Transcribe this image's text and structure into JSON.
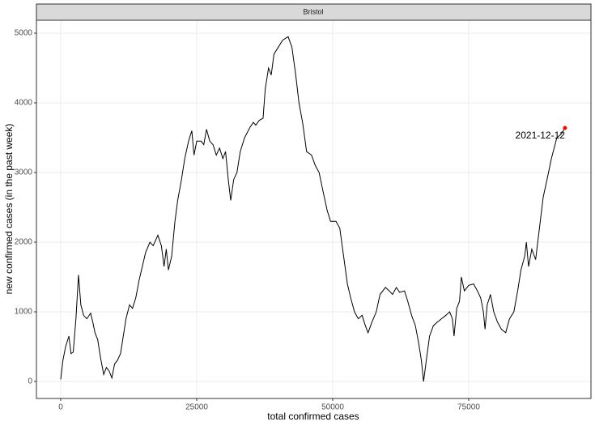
{
  "chart_data": {
    "type": "line",
    "strip": "Bristol",
    "x_label": "total confirmed cases",
    "y_label": "new confirmed cases (in the past week)",
    "color": "#000000",
    "grid": true,
    "xlim": [
      -4464,
      97470
    ],
    "ylim": [
      -244,
      5186
    ],
    "xticks": [
      0,
      25000,
      50000,
      75000
    ],
    "yticks": [
      0,
      1000,
      2000,
      3000,
      4000,
      5000
    ],
    "x": [
      0,
      400,
      900,
      1500,
      1900,
      2300,
      2800,
      3270,
      3700,
      4200,
      4800,
      5500,
      5900,
      6300,
      6800,
      7300,
      7900,
      8400,
      8900,
      9400,
      9900,
      10400,
      11000,
      11500,
      12000,
      12650,
      13200,
      13800,
      14400,
      15000,
      15600,
      16400,
      17000,
      17860,
      18500,
      19000,
      19400,
      19800,
      20400,
      21000,
      21500,
      22200,
      22800,
      23500,
      24100,
      24500,
      25000,
      25800,
      26300,
      26800,
      27400,
      28000,
      28600,
      29200,
      29800,
      30300,
      30800,
      31250,
      31800,
      32400,
      33000,
      33800,
      34800,
      35400,
      35860,
      36500,
      37200,
      37600,
      38200,
      38700,
      39200,
      40000,
      40800,
      41800,
      42500,
      43200,
      43800,
      44500,
      45200,
      46100,
      46800,
      47500,
      48300,
      49000,
      49600,
      50600,
      51300,
      52000,
      52700,
      53300,
      54000,
      54700,
      55400,
      56000,
      56500,
      57200,
      58000,
      58700,
      59700,
      60400,
      61000,
      61700,
      62300,
      63200,
      63800,
      64500,
      65200,
      65800,
      66300,
      66700,
      67200,
      67800,
      68500,
      69200,
      70000,
      70800,
      71500,
      72000,
      72300,
      72800,
      73300,
      73650,
      74200,
      75000,
      75900,
      76600,
      77200,
      77700,
      78000,
      78400,
      79000,
      79600,
      80300,
      81000,
      81800,
      82500,
      83300,
      84000,
      84600,
      85300,
      85600,
      86000,
      86600,
      87300,
      88000,
      88700,
      89400,
      90200,
      91200,
      92000,
      92700
    ],
    "values": [
      30,
      300,
      500,
      650,
      400,
      420,
      900,
      1530,
      1100,
      950,
      900,
      980,
      850,
      700,
      600,
      350,
      100,
      200,
      150,
      50,
      250,
      300,
      400,
      650,
      900,
      1100,
      1050,
      1200,
      1450,
      1650,
      1850,
      2000,
      1950,
      2100,
      1950,
      1650,
      1900,
      1600,
      1800,
      2300,
      2600,
      2900,
      3200,
      3450,
      3600,
      3250,
      3450,
      3450,
      3400,
      3620,
      3450,
      3400,
      3250,
      3350,
      3200,
      3300,
      2900,
      2600,
      2900,
      3000,
      3300,
      3500,
      3650,
      3720,
      3680,
      3750,
      3780,
      4200,
      4500,
      4400,
      4700,
      4800,
      4900,
      4950,
      4800,
      4400,
      4000,
      3700,
      3300,
      3250,
      3100,
      3000,
      2700,
      2450,
      2300,
      2300,
      2200,
      1800,
      1400,
      1200,
      1000,
      900,
      950,
      800,
      700,
      850,
      1000,
      1250,
      1350,
      1300,
      1250,
      1350,
      1280,
      1300,
      1150,
      950,
      800,
      550,
      300,
      0,
      300,
      650,
      800,
      850,
      900,
      950,
      1000,
      900,
      650,
      1050,
      1150,
      1500,
      1300,
      1380,
      1400,
      1300,
      1200,
      1000,
      750,
      1100,
      1250,
      1000,
      850,
      750,
      700,
      900,
      1000,
      1300,
      1600,
      1800,
      2000,
      1650,
      1900,
      1750,
      2200,
      2650,
      2900,
      3200,
      3500,
      3550,
      3640
    ],
    "highlight": {
      "x": 92700,
      "y": 3640,
      "label": "2021-12-12",
      "color": "#ff0000"
    }
  }
}
